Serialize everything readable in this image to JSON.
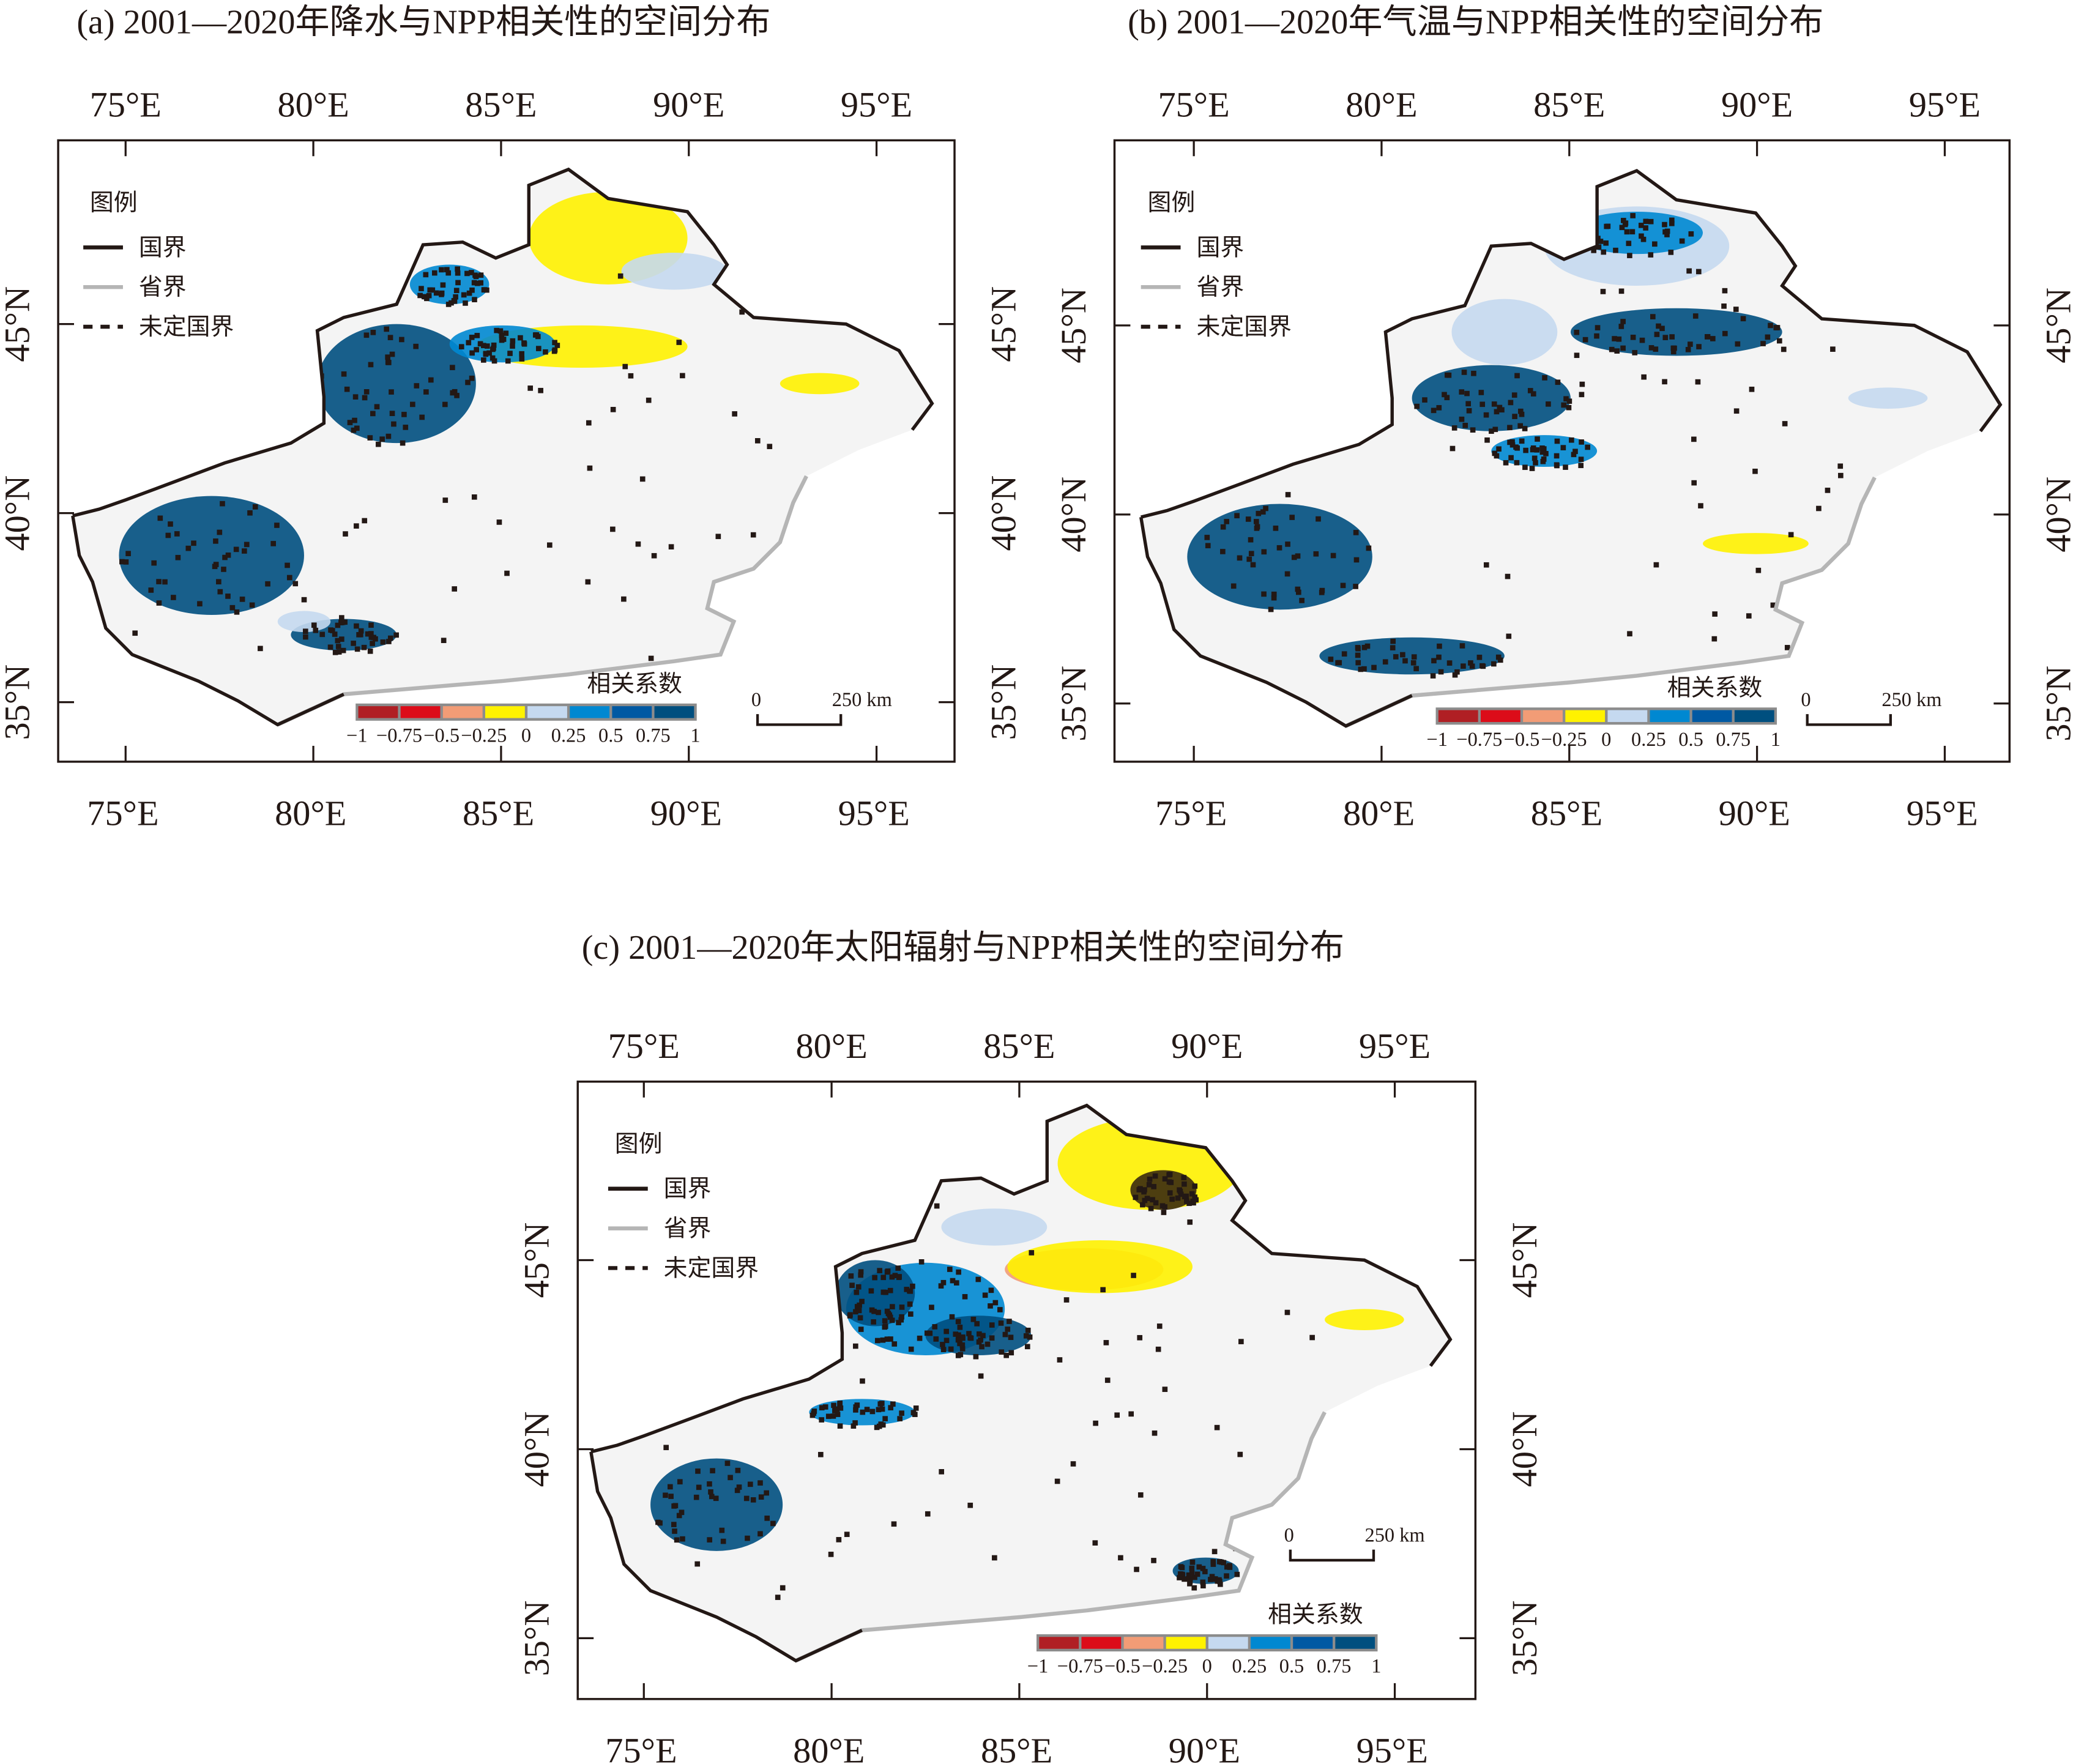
{
  "panels": [
    {
      "id": "a",
      "title": "(a) 2001—2020年降水与NPP相关性的空间分布"
    },
    {
      "id": "b",
      "title": "(b) 2001—2020年气温与NPP相关性的空间分布"
    },
    {
      "id": "c",
      "title": "(c) 2001—2020年太阳辐射与NPP相关性的空间分布"
    }
  ],
  "lon_ticks": [
    "75°E",
    "80°E",
    "85°E",
    "90°E",
    "95°E"
  ],
  "lat_ticks": [
    "45°N",
    "40°N",
    "35°N"
  ],
  "legend": {
    "title": "图例",
    "items": [
      {
        "label": "国界",
        "style": "solid",
        "color": "#231815"
      },
      {
        "label": "省界",
        "style": "solid",
        "color": "#b5b5b5"
      },
      {
        "label": "未定国界",
        "style": "dashed",
        "color": "#231815"
      }
    ]
  },
  "colorbar": {
    "title": "相关系数",
    "colors": [
      "#b01f24",
      "#dc0c19",
      "#f29c76",
      "#fff200",
      "#c5d9f0",
      "#0088d1",
      "#0059a3",
      "#004f7f"
    ],
    "labels": [
      "−1",
      "−0.75",
      "−0.5",
      "−0.25",
      "0",
      "0.25",
      "0.5",
      "0.75",
      "1"
    ]
  },
  "scalebar": {
    "start": "0",
    "end": "250 km"
  }
}
